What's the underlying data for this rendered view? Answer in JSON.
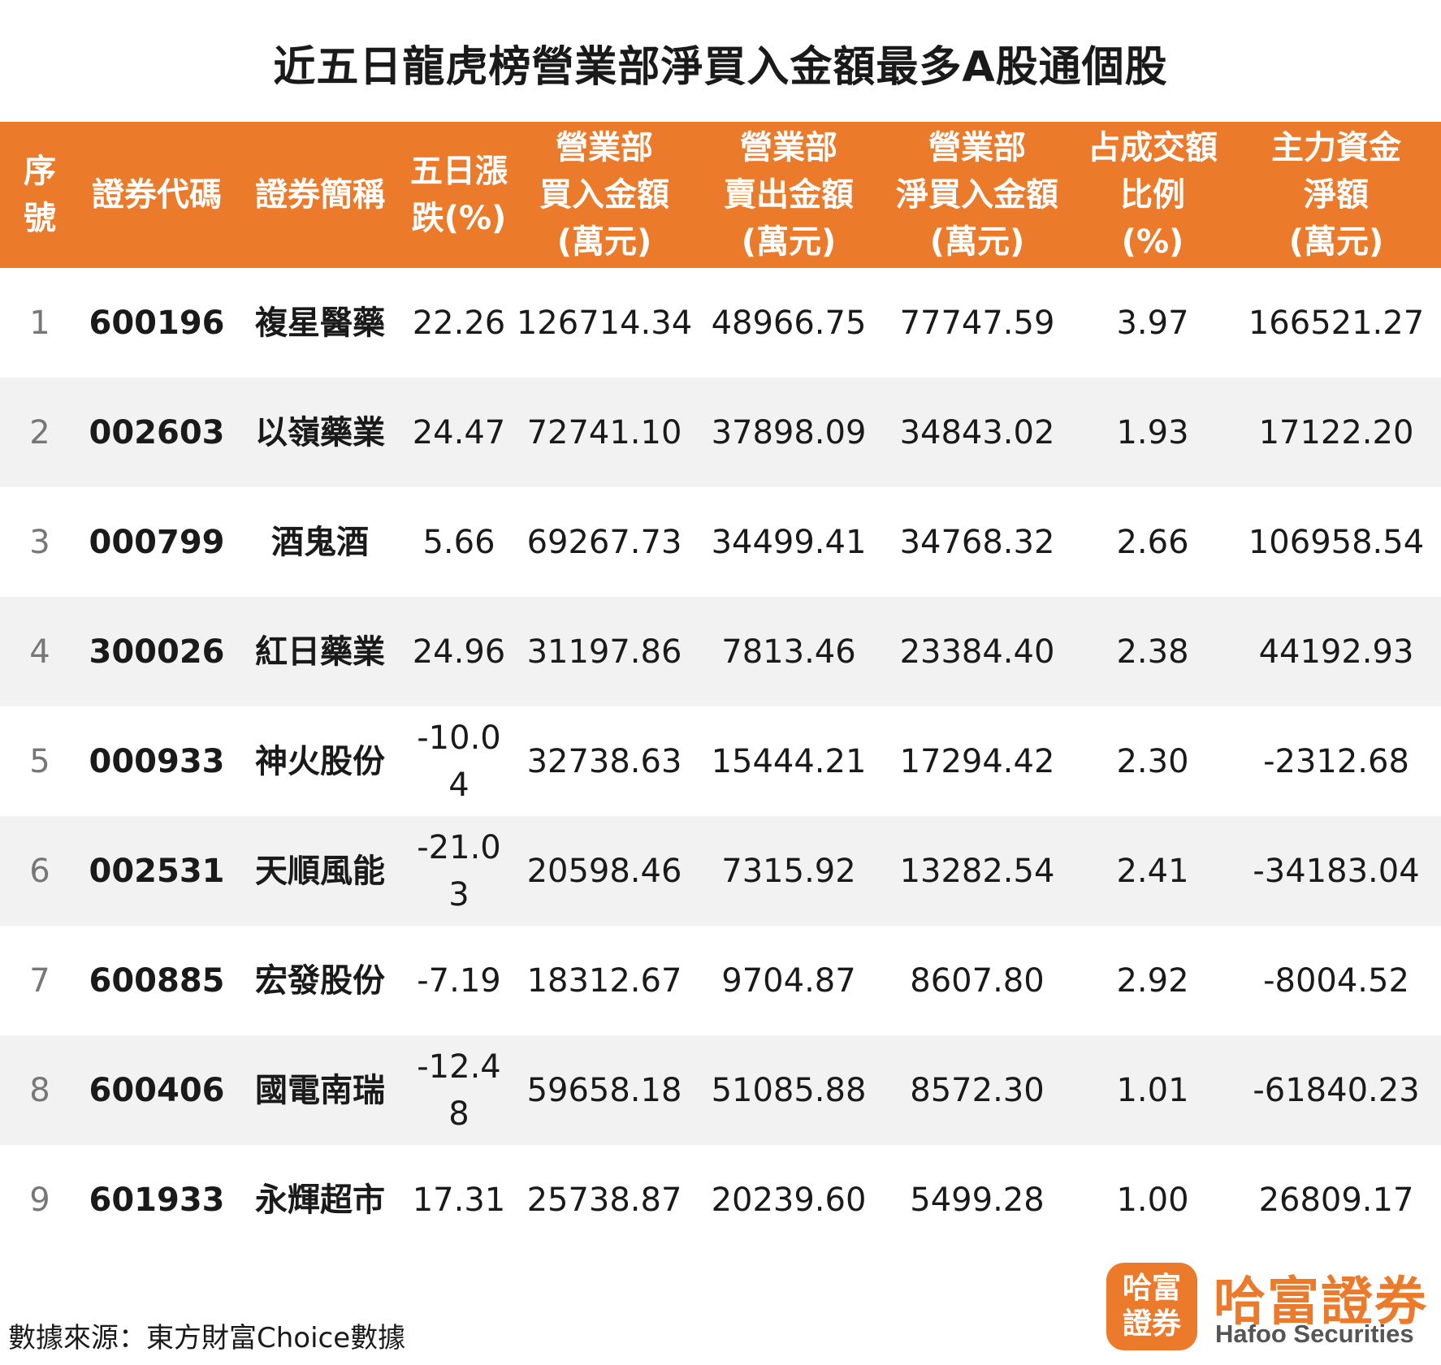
{
  "title": "近五日龍虎榜營業部淨買入金額最多A股通個股",
  "columns": [
    "序\n號",
    "證券代碼",
    "證券簡稱",
    "五日漲\n跌(%)",
    "營業部\n買入金額\n(萬元)",
    "營業部\n賣出金額\n(萬元)",
    "營業部\n淨買入金額\n(萬元)",
    "占成交額\n比例\n(%)",
    "主力資金\n淨額\n(萬元)"
  ],
  "rows": [
    [
      "1",
      "600196",
      "複星醫藥",
      "22.26",
      "126714.34",
      "48966.75",
      "77747.59",
      "3.97",
      "166521.27"
    ],
    [
      "2",
      "002603",
      "以嶺藥業",
      "24.47",
      "72741.10",
      "37898.09",
      "34843.02",
      "1.93",
      "17122.20"
    ],
    [
      "3",
      "000799",
      "酒鬼酒",
      "5.66",
      "69267.73",
      "34499.41",
      "34768.32",
      "2.66",
      "106958.54"
    ],
    [
      "4",
      "300026",
      "紅日藥業",
      "24.96",
      "31197.86",
      "7813.46",
      "23384.40",
      "2.38",
      "44192.93"
    ],
    [
      "5",
      "000933",
      "神火股份",
      "-10.04",
      "32738.63",
      "15444.21",
      "17294.42",
      "2.30",
      "-2312.68"
    ],
    [
      "6",
      "002531",
      "天順風能",
      "-21.03",
      "20598.46",
      "7315.92",
      "13282.54",
      "2.41",
      "-34183.04"
    ],
    [
      "7",
      "600885",
      "宏發股份",
      "-7.19",
      "18312.67",
      "9704.87",
      "8607.80",
      "2.92",
      "-8004.52"
    ],
    [
      "8",
      "600406",
      "國電南瑞",
      "-12.48",
      "59658.18",
      "51085.88",
      "8572.30",
      "1.01",
      "-61840.23"
    ],
    [
      "9",
      "601933",
      "永輝超市",
      "17.31",
      "25738.87",
      "20239.60",
      "5499.28",
      "1.00",
      "26809.17"
    ]
  ],
  "source": "數據來源：東方財富Choice數據",
  "logo": {
    "badge": "哈富\n證券",
    "name": "哈富證券",
    "en": "Hafoo Securities"
  },
  "colors": {
    "accent": "#ec7a2b",
    "stripe": "#f2f2f2"
  }
}
